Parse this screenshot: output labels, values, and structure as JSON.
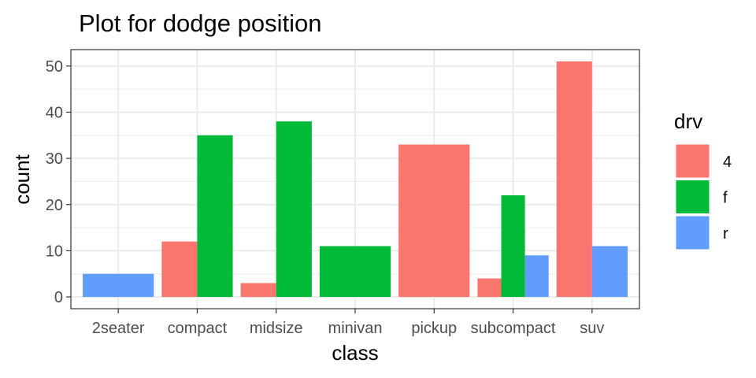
{
  "chart_data": {
    "type": "bar",
    "position": "dodge",
    "title": "Plot for dodge position",
    "xlabel": "class",
    "ylabel": "count",
    "categories": [
      "2seater",
      "compact",
      "midsize",
      "minivan",
      "pickup",
      "subcompact",
      "suv"
    ],
    "series": [
      {
        "name": "4",
        "color": "#F8766D",
        "values": [
          0,
          12,
          3,
          0,
          33,
          4,
          51
        ]
      },
      {
        "name": "f",
        "color": "#00BA38",
        "values": [
          0,
          35,
          38,
          11,
          0,
          22,
          0
        ]
      },
      {
        "name": "r",
        "color": "#619CFF",
        "values": [
          5,
          0,
          0,
          0,
          0,
          9,
          11
        ]
      }
    ],
    "ylim": [
      -2.55,
      53.55
    ],
    "yticks": [
      0,
      10,
      20,
      30,
      40,
      50
    ],
    "grid": true,
    "legend": {
      "title": "drv",
      "placement": "right",
      "entries": [
        "4",
        "f",
        "r"
      ]
    }
  }
}
